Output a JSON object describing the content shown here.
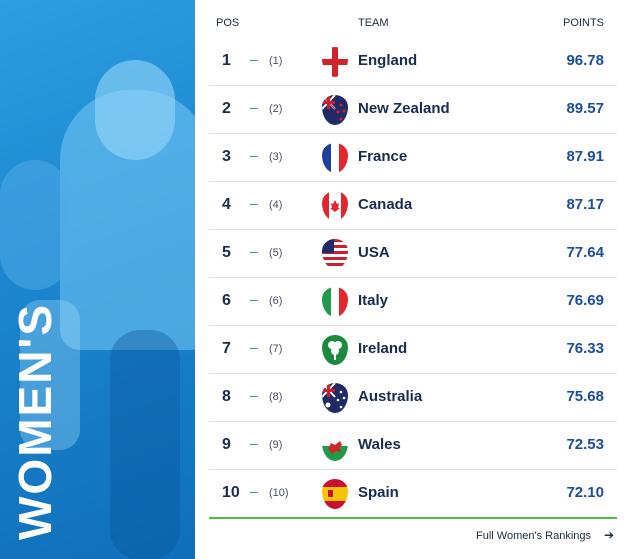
{
  "side_label": "WOMEN'S",
  "headers": {
    "pos": "POS",
    "team": "TEAM",
    "points": "POINTS"
  },
  "rows": [
    {
      "pos": "1",
      "movement": "–",
      "previous": "(1)",
      "team": "England",
      "points": "96.78",
      "flag_icon": "england-flag-icon"
    },
    {
      "pos": "2",
      "movement": "–",
      "previous": "(2)",
      "team": "New Zealand",
      "points": "89.57",
      "flag_icon": "new-zealand-flag-icon"
    },
    {
      "pos": "3",
      "movement": "–",
      "previous": "(3)",
      "team": "France",
      "points": "87.91",
      "flag_icon": "france-flag-icon"
    },
    {
      "pos": "4",
      "movement": "–",
      "previous": "(4)",
      "team": "Canada",
      "points": "87.17",
      "flag_icon": "canada-flag-icon"
    },
    {
      "pos": "5",
      "movement": "–",
      "previous": "(5)",
      "team": "USA",
      "points": "77.64",
      "flag_icon": "usa-flag-icon"
    },
    {
      "pos": "6",
      "movement": "–",
      "previous": "(6)",
      "team": "Italy",
      "points": "76.69",
      "flag_icon": "italy-flag-icon"
    },
    {
      "pos": "7",
      "movement": "–",
      "previous": "(7)",
      "team": "Ireland",
      "points": "76.33",
      "flag_icon": "ireland-flag-icon"
    },
    {
      "pos": "8",
      "movement": "–",
      "previous": "(8)",
      "team": "Australia",
      "points": "75.68",
      "flag_icon": "australia-flag-icon"
    },
    {
      "pos": "9",
      "movement": "–",
      "previous": "(9)",
      "team": "Wales",
      "points": "72.53",
      "flag_icon": "wales-flag-icon"
    },
    {
      "pos": "10",
      "movement": "–",
      "previous": "(10)",
      "team": "Spain",
      "points": "72.10",
      "flag_icon": "spain-flag-icon"
    }
  ],
  "footer": {
    "link_label": "Full Women's Rankings",
    "arrow": "➔"
  },
  "colors": {
    "panel": "#1b86cf",
    "text_dark": "#1a2b52",
    "points": "#1a4e9c",
    "accent_line": "#58b84b"
  }
}
